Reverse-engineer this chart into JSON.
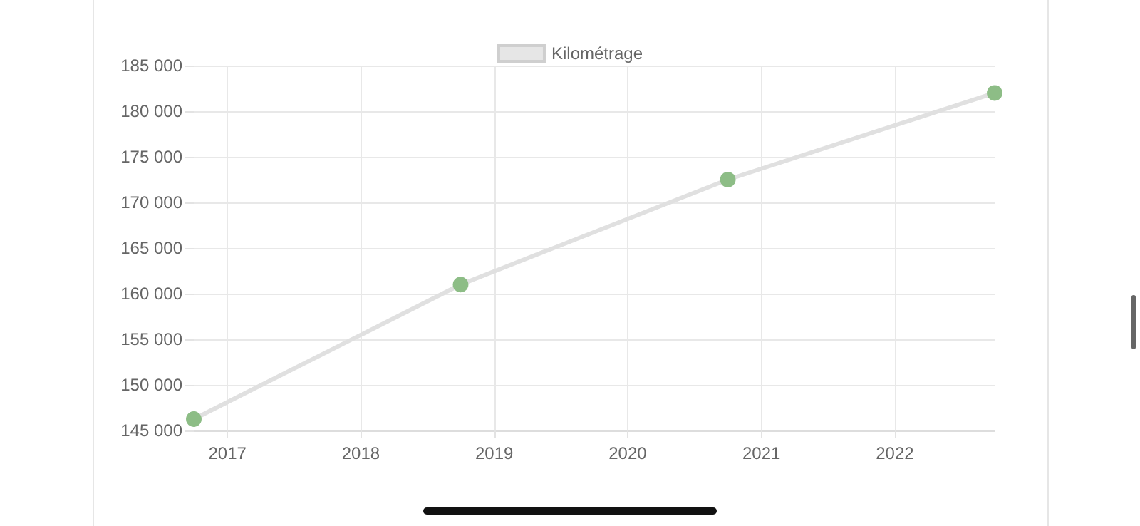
{
  "chart_data": {
    "type": "line",
    "x": [
      "2016-10",
      "2018-10",
      "2020-10",
      "2022-10"
    ],
    "series": [
      {
        "name": "Kilométrage",
        "color": "#e0e0e0",
        "colors": [
          "#8dbd86",
          "#8dbd86",
          "#8dbd86",
          "#8dbd86"
        ],
        "values": [
          146250,
          161000,
          172500,
          182000
        ]
      }
    ],
    "xlim": [
      "2016-10",
      "2022-10"
    ],
    "xticks": [
      "2017",
      "2018",
      "2019",
      "2020",
      "2021",
      "2022"
    ],
    "ylim": [
      145000,
      185000
    ],
    "yticks": [
      {
        "value": 145000,
        "label": "145 000"
      },
      {
        "value": 150000,
        "label": "150 000"
      },
      {
        "value": 155000,
        "label": "155 000"
      },
      {
        "value": 160000,
        "label": "160 000"
      },
      {
        "value": 165000,
        "label": "165 000"
      },
      {
        "value": 170000,
        "label": "170 000"
      },
      {
        "value": 175000,
        "label": "175 000"
      },
      {
        "value": 180000,
        "label": "180 000"
      },
      {
        "value": 185000,
        "label": "185 000"
      }
    ],
    "grid": true,
    "legend": "top",
    "marker": "circle",
    "line_style": "solid"
  }
}
